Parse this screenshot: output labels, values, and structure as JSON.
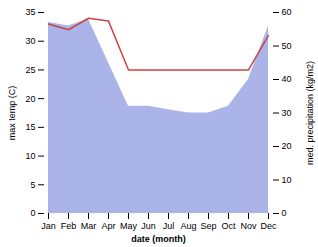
{
  "chart_data": {
    "type": "line",
    "categories": [
      "Jan",
      "Feb",
      "Mar",
      "Apr",
      "May",
      "Jun",
      "Jul",
      "Aug",
      "Sep",
      "Oct",
      "Nov",
      "Dec"
    ],
    "xlabel": "date (month)",
    "ylabel": "max temp (C)",
    "y2label": "med. precipitation (kg/m2)",
    "ylim": [
      0,
      35
    ],
    "yticks": [
      0,
      5,
      10,
      15,
      20,
      25,
      30,
      35
    ],
    "y2lim": [
      0,
      60
    ],
    "y2ticks": [
      0,
      10,
      20,
      30,
      40,
      50,
      60
    ],
    "grid": false,
    "series": [
      {
        "type": "area",
        "axis": "y2",
        "color": "#aab4e8",
        "values": [
          57,
          56,
          58,
          45,
          32,
          32,
          31,
          30,
          30,
          32,
          40,
          56
        ]
      },
      {
        "type": "line",
        "color": "#cc4444",
        "values": [
          33,
          32,
          34,
          33.5,
          25,
          25,
          25,
          25,
          25,
          25,
          25,
          31
        ]
      }
    ]
  }
}
